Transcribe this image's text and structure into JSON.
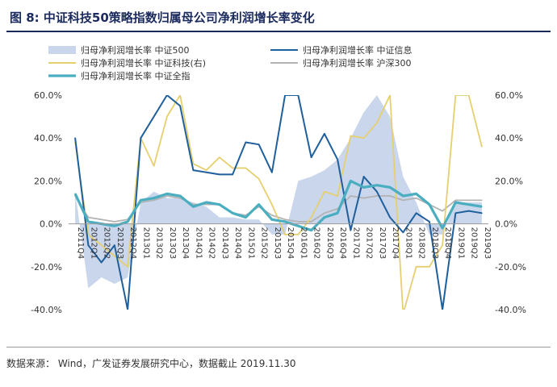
{
  "header": {
    "title": "图 8:  中证科技50策略指数归属母公司净利润增长率变化"
  },
  "footer": {
    "source": "数据来源：  Wind，广发证券发展研究中心，数据截止 2019.11.30"
  },
  "chart_data": {
    "type": "line",
    "categories": [
      "2011Q4",
      "2012Q1",
      "2012Q2",
      "2012Q3",
      "2012Q4",
      "2013Q1",
      "2013Q2",
      "2013Q3",
      "2013Q4",
      "2014Q1",
      "2014Q2",
      "2014Q3",
      "2014Q4",
      "2015Q1",
      "2015Q2",
      "2015Q3",
      "2015Q4",
      "2016Q1",
      "2016Q2",
      "2016Q3",
      "2016Q4",
      "2017Q1",
      "2017Q2",
      "2017Q3",
      "2017Q4",
      "2018Q1",
      "2018Q2",
      "2018Q3",
      "2018Q4",
      "2019Q1",
      "2019Q2",
      "2019Q3"
    ],
    "ylim": [
      -40,
      60
    ],
    "y_ticks": [
      -40,
      -20,
      0,
      20,
      40,
      60
    ],
    "y_tick_labels": [
      "-40.0%",
      "-20.0%",
      "0.0%",
      "20.0%",
      "40.0%",
      "60.0%"
    ],
    "y_right_ticks": [
      -40,
      -20,
      0,
      20,
      40,
      60
    ],
    "y_right_tick_labels": [
      "-40.0%",
      "-20.0%",
      "0.0%",
      "20.0%",
      "40.0%",
      "60.0%"
    ],
    "grid": false,
    "legend_position": "top",
    "series": [
      {
        "name": "归母净利润增长率 中证500",
        "kind": "area",
        "color": "#c9d6ec",
        "values": [
          15,
          -30,
          -25,
          -28,
          -25,
          10,
          15,
          12,
          12,
          10,
          8,
          3,
          3,
          2,
          2,
          -5,
          -5,
          20,
          22,
          25,
          30,
          40,
          52,
          60,
          50,
          22,
          10,
          -5,
          -5,
          10,
          10,
          10
        ]
      },
      {
        "name": "归母净利润增长率 中证信息",
        "kind": "line",
        "color": "#1f5f9c",
        "values": [
          40,
          -10,
          -18,
          -10,
          -40,
          40,
          50,
          60,
          55,
          25,
          24,
          23,
          23,
          38,
          37,
          24,
          60,
          60,
          31,
          42,
          30,
          -3,
          22,
          15,
          3,
          -4,
          5,
          1,
          -40,
          5,
          6,
          5
        ]
      },
      {
        "name": "归母净利润增长率 中证科技(右)",
        "kind": "line",
        "color": "#e6cf6e",
        "values": [
          38,
          -5,
          -10,
          -15,
          -20,
          40,
          27,
          50,
          60,
          28,
          25,
          31,
          26,
          26,
          21,
          9,
          -5,
          -5,
          3,
          15,
          13,
          41,
          40,
          47,
          60,
          -42,
          -20,
          -20,
          -10,
          60,
          60,
          36
        ]
      },
      {
        "name": "归母净利润增长率 沪深300",
        "kind": "line",
        "color": "#b3b3b3",
        "values": [
          13,
          3,
          2,
          1,
          2,
          10,
          11,
          13,
          12,
          9,
          9,
          9,
          5,
          4,
          8,
          4,
          2,
          1,
          1,
          5,
          7,
          13,
          12,
          13,
          13,
          11,
          12,
          9,
          6,
          11,
          11,
          11
        ]
      },
      {
        "name": "归母净利润增长率 中证全指",
        "kind": "line",
        "color": "#4aaec0",
        "values": [
          14,
          1,
          0,
          -1,
          1,
          11,
          12,
          14,
          13,
          8,
          10,
          9,
          5,
          3,
          9,
          2,
          1,
          -1,
          -3,
          3,
          5,
          20,
          17,
          18,
          17,
          13,
          14,
          9,
          -2,
          10,
          9,
          8
        ]
      }
    ]
  }
}
